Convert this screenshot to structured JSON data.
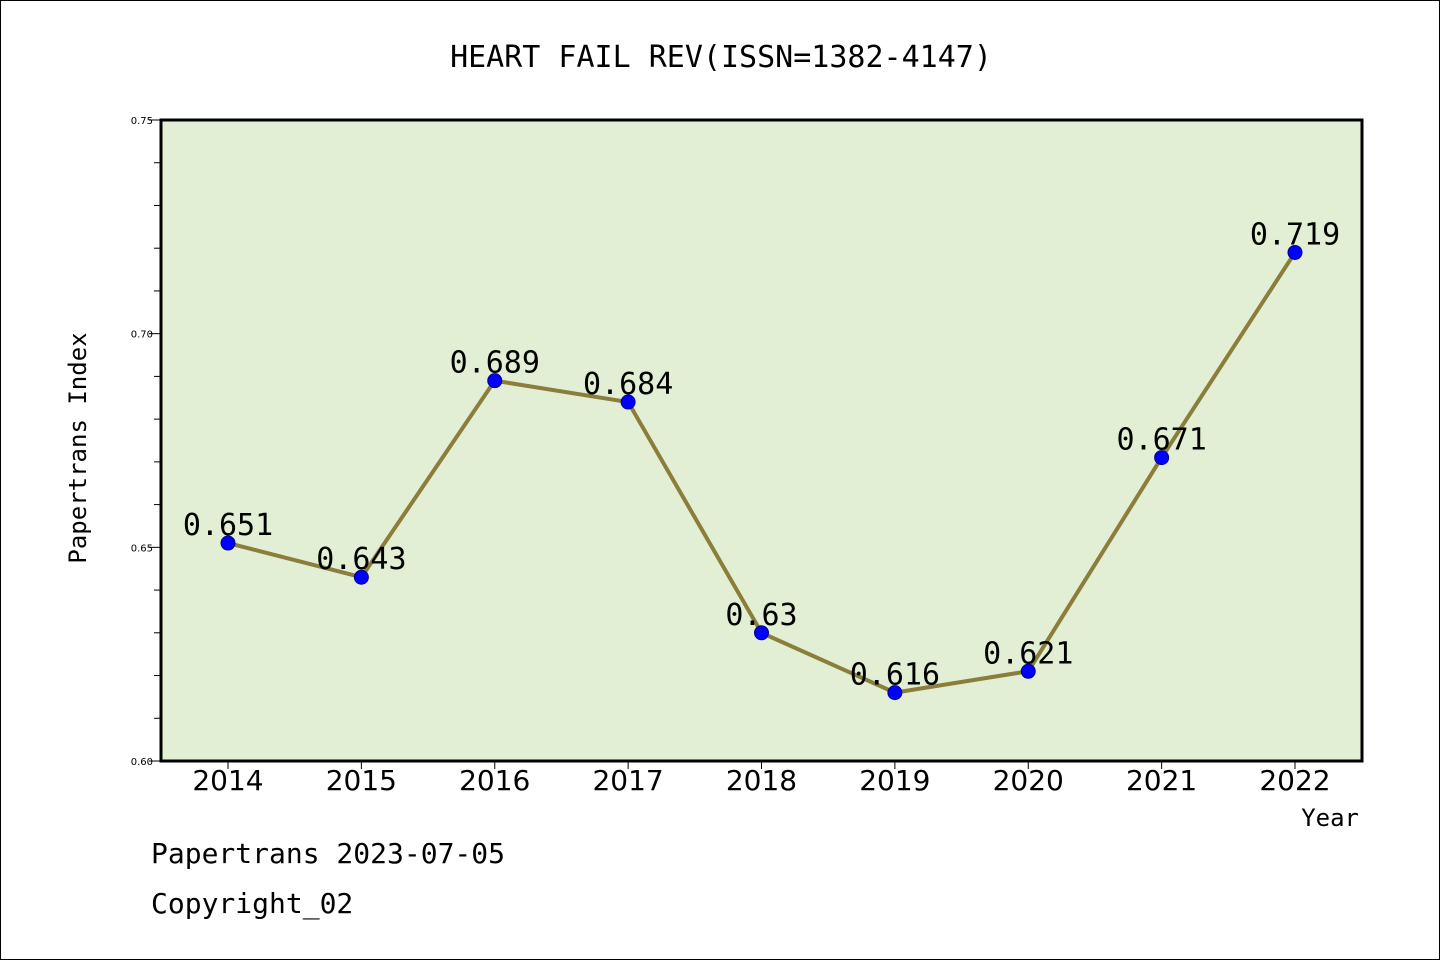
{
  "chart_data": {
    "type": "line",
    "title": "HEART FAIL REV(ISSN=1382-4147)",
    "xlabel": "Year",
    "ylabel": "Papertrans Index",
    "categories": [
      "2014",
      "2015",
      "2016",
      "2017",
      "2018",
      "2019",
      "2020",
      "2021",
      "2022"
    ],
    "series": [
      {
        "values": [
          0.651,
          0.643,
          0.689,
          0.684,
          0.63,
          0.616,
          0.621,
          0.671,
          0.719
        ],
        "labels": [
          "0.651",
          "0.643",
          "0.689",
          "0.684",
          "0.63",
          "0.616",
          "0.621",
          "0.671",
          "0.719"
        ]
      }
    ],
    "ylim": [
      0.6,
      0.75
    ],
    "yticks": [
      "0.60",
      "0.65",
      "0.70",
      "0.75"
    ],
    "grid": false,
    "colors": {
      "plot_bg": "#e2efd4",
      "line": "#8b7d3a",
      "marker": "#0000ff"
    }
  },
  "footer": {
    "line1": "Papertrans 2023-07-05",
    "line2": "Copyright_02"
  }
}
